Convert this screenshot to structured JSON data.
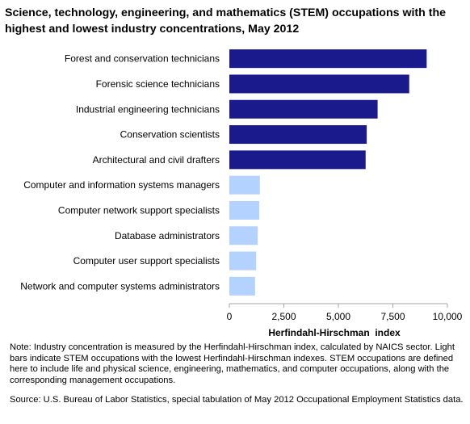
{
  "title": "Science, technology, engineering, and mathematics (STEM) occupations with the highest and lowest industry concentrations, May 2012",
  "note": "Note: Industry concentration is measured by the Herfindahl-Hirschman index, calculated by NAICS sector. Light bars indicate STEM occupations with the lowest Herfindahl-Hirschman indexes. STEM occupations are defined here to include life and physical science, engineering, mathematics, and computer occupations, along with the corresponding management occupations.",
  "source": "Source: U.S. Bureau of Labor Statistics, special tabulation of May 2012 Occupational Employment Statistics data.",
  "colors": {
    "highest": "#1a1a8c",
    "lowest": "#b3d2ff"
  },
  "chart_data": {
    "type": "bar",
    "orientation": "horizontal",
    "categories": [
      "Forest and conservation technicians",
      "Forensic science technicians",
      "Industrial engineering technicians",
      "Conservation scientists",
      "Architectural and civil drafters",
      "Computer and information systems managers",
      "Computer network support specialists",
      "Database administrators",
      "Computer user support specialists",
      "Network and computer systems administrators"
    ],
    "values": [
      9050,
      8250,
      6800,
      6300,
      6250,
      1400,
      1370,
      1300,
      1230,
      1180
    ],
    "groups": [
      "highest",
      "highest",
      "highest",
      "highest",
      "highest",
      "lowest",
      "lowest",
      "lowest",
      "lowest",
      "lowest"
    ],
    "xlabel": "Herfindahl-Hirschman  index",
    "ylabel": "",
    "xlim": [
      0,
      10000
    ],
    "ticks": [
      0,
      2500,
      5000,
      7500,
      10000
    ],
    "tick_labels": [
      "0",
      "2,500",
      "5,000",
      "7,500",
      "10,000"
    ],
    "grid": false,
    "legend": "none"
  }
}
